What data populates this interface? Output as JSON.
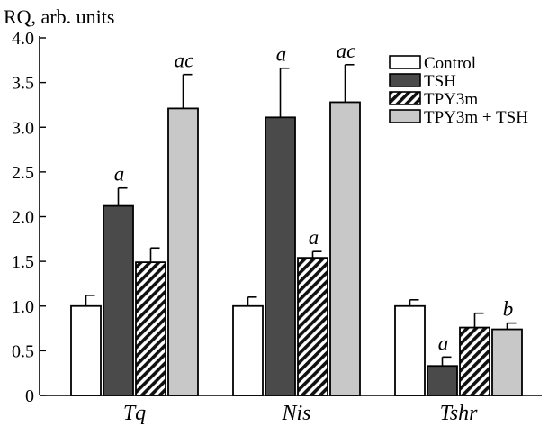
{
  "chart_data": {
    "type": "bar",
    "ylabel": "RQ, arb. units",
    "xlabel": "",
    "ylim": [
      0,
      4.0
    ],
    "yticks": [
      "0",
      "0.5",
      "1.0",
      "1.5",
      "2.0",
      "2.5",
      "3.0",
      "3.5",
      "4.0"
    ],
    "categories": [
      "Tq",
      "Nis",
      "Tshr"
    ],
    "legend_position": "top-right",
    "grid": false,
    "series": [
      {
        "name": "Control",
        "fill": "white",
        "values": [
          1.0,
          1.0,
          1.0
        ],
        "errors": [
          0.12,
          0.1,
          0.07
        ],
        "annotations": [
          "",
          "",
          ""
        ]
      },
      {
        "name": "TSH",
        "fill": "dark",
        "values": [
          2.12,
          3.11,
          0.33
        ],
        "errors": [
          0.2,
          0.55,
          0.1
        ],
        "annotations": [
          "a",
          "a",
          "a"
        ]
      },
      {
        "name": "TPY3m",
        "fill": "hatch",
        "values": [
          1.49,
          1.54,
          0.76
        ],
        "errors": [
          0.16,
          0.07,
          0.16
        ],
        "annotations": [
          "",
          "a",
          ""
        ]
      },
      {
        "name": "TPY3m + TSH",
        "fill": "light",
        "values": [
          3.21,
          3.28,
          0.74
        ],
        "errors": [
          0.38,
          0.42,
          0.07
        ],
        "annotations": [
          "ac",
          "ac",
          "b"
        ]
      }
    ],
    "colors": {
      "dark": "#4a4a4a",
      "light": "#c8c8c8",
      "white": "#ffffff",
      "stroke": "#000000"
    }
  }
}
